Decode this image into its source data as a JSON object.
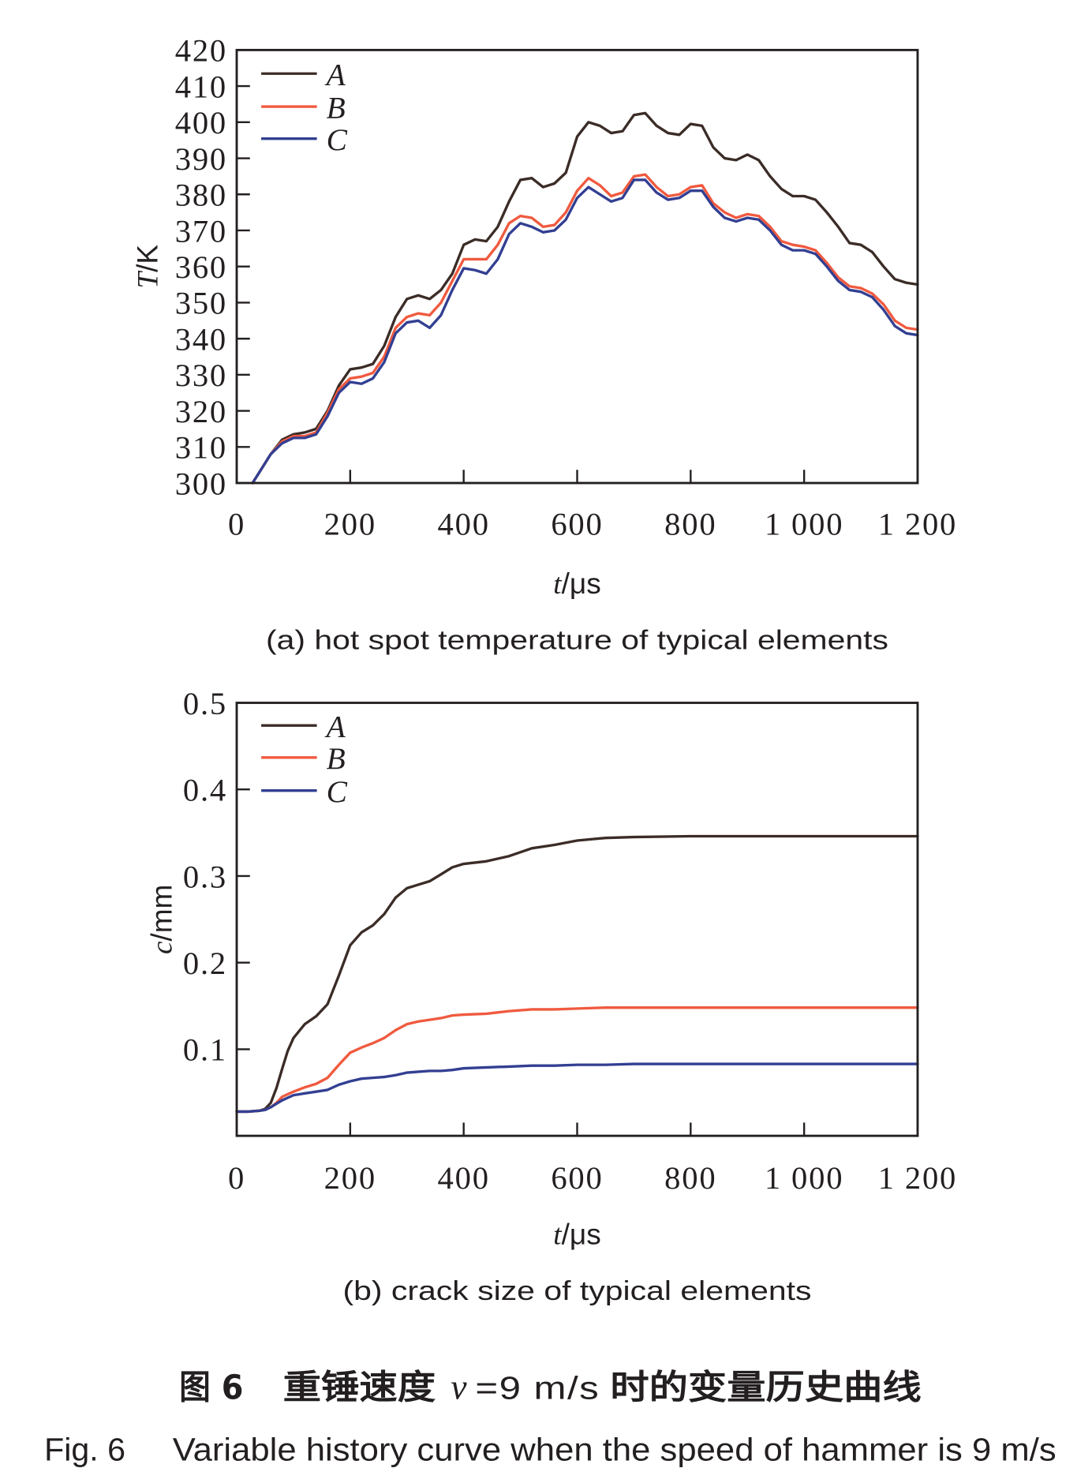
{
  "chart_data": [
    {
      "type": "line",
      "caption": "(a) hot spot temperature of typical elements",
      "xlabel": "t/μs",
      "ylabel": "T/K",
      "xlim": [
        0,
        1200
      ],
      "ylim": [
        300,
        420
      ],
      "xticks": [
        0,
        200,
        400,
        600,
        800,
        1000,
        1200
      ],
      "xtick_labels": [
        "0",
        "200",
        "400",
        "600",
        "800",
        "1 000",
        "1 200"
      ],
      "yticks": [
        300,
        310,
        320,
        330,
        340,
        350,
        360,
        370,
        380,
        390,
        400,
        410,
        420
      ],
      "ytick_labels": [
        "300",
        "310",
        "320",
        "330",
        "340",
        "350",
        "360",
        "370",
        "380",
        "390",
        "400",
        "410",
        "420"
      ],
      "grid": false,
      "legend": "top-left",
      "x": [
        28,
        40,
        60,
        80,
        100,
        120,
        140,
        160,
        180,
        200,
        220,
        240,
        260,
        280,
        300,
        320,
        340,
        360,
        380,
        400,
        420,
        440,
        460,
        480,
        500,
        520,
        540,
        560,
        580,
        600,
        620,
        640,
        660,
        680,
        700,
        720,
        740,
        760,
        780,
        800,
        820,
        840,
        860,
        880,
        900,
        920,
        940,
        960,
        980,
        1000,
        1020,
        1040,
        1060,
        1080,
        1100,
        1120,
        1140,
        1160,
        1180,
        1200
      ],
      "series": [
        {
          "name": "A",
          "color": "#3b2c27",
          "values": [
            300,
            303,
            308,
            312,
            313.5,
            314,
            315,
            320,
            327,
            331.5,
            332,
            333,
            338,
            346,
            351,
            352,
            351,
            353.5,
            358,
            366,
            367.5,
            367,
            371,
            378,
            384,
            384.5,
            382,
            383,
            386,
            396,
            400,
            399,
            397,
            397.5,
            402,
            402.5,
            399,
            397,
            396.5,
            399.5,
            399,
            393,
            390,
            389.5,
            391,
            389.5,
            385,
            381.5,
            379.5,
            379.5,
            378.5,
            375,
            371,
            366.5,
            366,
            364,
            360,
            356.5,
            355.5,
            355
          ]
        },
        {
          "name": "B",
          "color": "#f05a3f",
          "values": [
            300,
            303,
            308,
            311.5,
            313,
            313,
            314,
            319.5,
            326,
            329,
            329.5,
            330.5,
            335,
            343,
            346,
            347,
            346.5,
            350,
            356,
            362,
            362,
            362,
            366,
            372,
            374,
            373.5,
            371,
            371.5,
            375,
            381,
            384.5,
            382.5,
            379.5,
            380.5,
            385,
            385.5,
            382,
            379.5,
            380,
            382,
            382.5,
            377.5,
            375,
            373.5,
            374.5,
            374,
            371,
            367,
            366,
            365.5,
            364.5,
            361,
            357,
            354.5,
            354,
            352.5,
            349.5,
            345,
            343,
            342.5
          ]
        },
        {
          "name": "C",
          "color": "#323f92",
          "values": [
            300,
            303,
            308,
            311,
            312.5,
            312.5,
            313.5,
            318.5,
            325,
            328,
            327.5,
            329,
            333.5,
            341.5,
            344.5,
            345,
            343,
            346.5,
            353.5,
            359.5,
            359,
            358,
            362,
            369,
            372,
            371,
            369.5,
            370,
            373,
            379,
            382,
            380,
            378,
            379,
            384,
            384,
            380.5,
            378.5,
            379,
            381,
            381,
            376.5,
            373.5,
            372.5,
            373.5,
            373,
            370,
            366,
            364.5,
            364.5,
            363.5,
            360,
            356,
            353.5,
            353,
            351.5,
            348,
            343.5,
            341.5,
            341
          ]
        }
      ]
    },
    {
      "type": "line",
      "caption": "(b) crack size of typical elements",
      "xlabel": "t/μs",
      "ylabel": "c/mm",
      "xlim": [
        0,
        1200
      ],
      "ylim": [
        0,
        0.5
      ],
      "xticks": [
        0,
        200,
        400,
        600,
        800,
        1000,
        1200
      ],
      "xtick_labels": [
        "0",
        "200",
        "400",
        "600",
        "800",
        "1 000",
        "1 200"
      ],
      "yticks": [
        0.1,
        0.2,
        0.3,
        0.4,
        0.5
      ],
      "ytick_labels": [
        "0.1",
        "0.2",
        "0.3",
        "0.4",
        "0.5"
      ],
      "grid": false,
      "legend": "top-left",
      "x": [
        0,
        20,
        40,
        50,
        60,
        70,
        80,
        90,
        100,
        120,
        140,
        160,
        180,
        200,
        220,
        240,
        260,
        280,
        300,
        320,
        340,
        360,
        380,
        400,
        440,
        480,
        520,
        560,
        600,
        650,
        700,
        800,
        900,
        1000,
        1100,
        1200
      ],
      "series": [
        {
          "name": "A",
          "color": "#3b2c27",
          "values": [
            0.028,
            0.028,
            0.029,
            0.031,
            0.038,
            0.055,
            0.077,
            0.098,
            0.113,
            0.129,
            0.138,
            0.152,
            0.185,
            0.22,
            0.235,
            0.243,
            0.256,
            0.275,
            0.286,
            0.29,
            0.294,
            0.302,
            0.31,
            0.314,
            0.317,
            0.323,
            0.332,
            0.336,
            0.341,
            0.344,
            0.345,
            0.346,
            0.346,
            0.346,
            0.346,
            0.346
          ]
        },
        {
          "name": "B",
          "color": "#f05a3f",
          "values": [
            0.028,
            0.028,
            0.029,
            0.03,
            0.033,
            0.038,
            0.045,
            0.048,
            0.051,
            0.056,
            0.06,
            0.067,
            0.082,
            0.096,
            0.102,
            0.107,
            0.113,
            0.122,
            0.129,
            0.132,
            0.134,
            0.136,
            0.139,
            0.14,
            0.141,
            0.144,
            0.146,
            0.146,
            0.147,
            0.148,
            0.148,
            0.148,
            0.148,
            0.148,
            0.148,
            0.148
          ]
        },
        {
          "name": "C",
          "color": "#323f92",
          "values": [
            0.028,
            0.028,
            0.029,
            0.03,
            0.033,
            0.037,
            0.041,
            0.044,
            0.047,
            0.049,
            0.051,
            0.053,
            0.059,
            0.063,
            0.066,
            0.067,
            0.068,
            0.07,
            0.073,
            0.074,
            0.075,
            0.075,
            0.076,
            0.078,
            0.079,
            0.08,
            0.081,
            0.081,
            0.082,
            0.082,
            0.083,
            0.083,
            0.083,
            0.083,
            0.083,
            0.083
          ]
        }
      ]
    }
  ],
  "figure_caption": {
    "cn_fig": "图 6",
    "cn_title_pre": "重锤速度",
    "cn_var": "v",
    "cn_speed": "=9 m/s",
    "cn_title_post": "时的变量历史曲线",
    "en_fig": "Fig. 6",
    "en_title": "Variable history curve when the speed of hammer is 9 m/s"
  }
}
